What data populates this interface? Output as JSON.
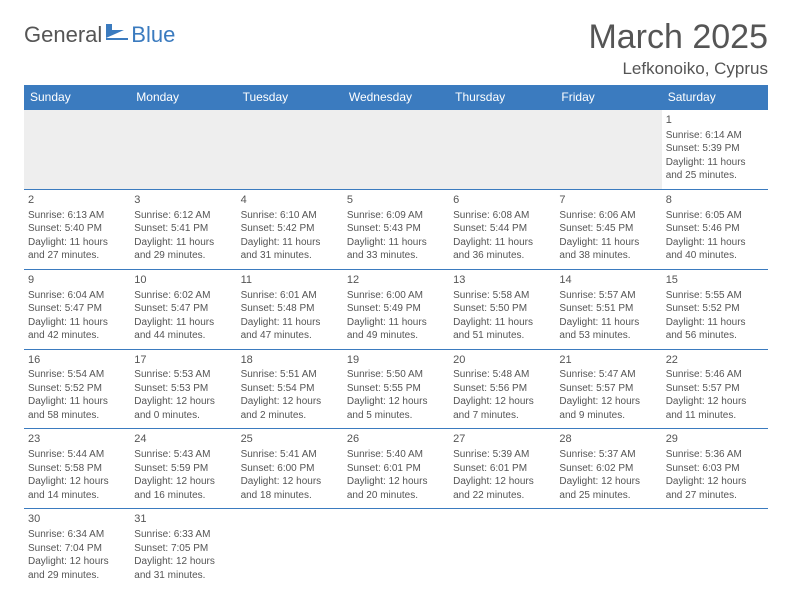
{
  "logo": {
    "text1": "General",
    "text2": "Blue"
  },
  "title": "March 2025",
  "location": "Lefkonoiko, Cyprus",
  "colors": {
    "header_bg": "#3b7bbf",
    "header_text": "#ffffff",
    "body_text": "#555555",
    "border": "#3b7bbf",
    "empty_bg": "#eeeeee"
  },
  "day_headers": [
    "Sunday",
    "Monday",
    "Tuesday",
    "Wednesday",
    "Thursday",
    "Friday",
    "Saturday"
  ],
  "weeks": [
    [
      null,
      null,
      null,
      null,
      null,
      null,
      {
        "n": "1",
        "sr": "Sunrise: 6:14 AM",
        "ss": "Sunset: 5:39 PM",
        "dl": "Daylight: 11 hours and 25 minutes."
      }
    ],
    [
      {
        "n": "2",
        "sr": "Sunrise: 6:13 AM",
        "ss": "Sunset: 5:40 PM",
        "dl": "Daylight: 11 hours and 27 minutes."
      },
      {
        "n": "3",
        "sr": "Sunrise: 6:12 AM",
        "ss": "Sunset: 5:41 PM",
        "dl": "Daylight: 11 hours and 29 minutes."
      },
      {
        "n": "4",
        "sr": "Sunrise: 6:10 AM",
        "ss": "Sunset: 5:42 PM",
        "dl": "Daylight: 11 hours and 31 minutes."
      },
      {
        "n": "5",
        "sr": "Sunrise: 6:09 AM",
        "ss": "Sunset: 5:43 PM",
        "dl": "Daylight: 11 hours and 33 minutes."
      },
      {
        "n": "6",
        "sr": "Sunrise: 6:08 AM",
        "ss": "Sunset: 5:44 PM",
        "dl": "Daylight: 11 hours and 36 minutes."
      },
      {
        "n": "7",
        "sr": "Sunrise: 6:06 AM",
        "ss": "Sunset: 5:45 PM",
        "dl": "Daylight: 11 hours and 38 minutes."
      },
      {
        "n": "8",
        "sr": "Sunrise: 6:05 AM",
        "ss": "Sunset: 5:46 PM",
        "dl": "Daylight: 11 hours and 40 minutes."
      }
    ],
    [
      {
        "n": "9",
        "sr": "Sunrise: 6:04 AM",
        "ss": "Sunset: 5:47 PM",
        "dl": "Daylight: 11 hours and 42 minutes."
      },
      {
        "n": "10",
        "sr": "Sunrise: 6:02 AM",
        "ss": "Sunset: 5:47 PM",
        "dl": "Daylight: 11 hours and 44 minutes."
      },
      {
        "n": "11",
        "sr": "Sunrise: 6:01 AM",
        "ss": "Sunset: 5:48 PM",
        "dl": "Daylight: 11 hours and 47 minutes."
      },
      {
        "n": "12",
        "sr": "Sunrise: 6:00 AM",
        "ss": "Sunset: 5:49 PM",
        "dl": "Daylight: 11 hours and 49 minutes."
      },
      {
        "n": "13",
        "sr": "Sunrise: 5:58 AM",
        "ss": "Sunset: 5:50 PM",
        "dl": "Daylight: 11 hours and 51 minutes."
      },
      {
        "n": "14",
        "sr": "Sunrise: 5:57 AM",
        "ss": "Sunset: 5:51 PM",
        "dl": "Daylight: 11 hours and 53 minutes."
      },
      {
        "n": "15",
        "sr": "Sunrise: 5:55 AM",
        "ss": "Sunset: 5:52 PM",
        "dl": "Daylight: 11 hours and 56 minutes."
      }
    ],
    [
      {
        "n": "16",
        "sr": "Sunrise: 5:54 AM",
        "ss": "Sunset: 5:52 PM",
        "dl": "Daylight: 11 hours and 58 minutes."
      },
      {
        "n": "17",
        "sr": "Sunrise: 5:53 AM",
        "ss": "Sunset: 5:53 PM",
        "dl": "Daylight: 12 hours and 0 minutes."
      },
      {
        "n": "18",
        "sr": "Sunrise: 5:51 AM",
        "ss": "Sunset: 5:54 PM",
        "dl": "Daylight: 12 hours and 2 minutes."
      },
      {
        "n": "19",
        "sr": "Sunrise: 5:50 AM",
        "ss": "Sunset: 5:55 PM",
        "dl": "Daylight: 12 hours and 5 minutes."
      },
      {
        "n": "20",
        "sr": "Sunrise: 5:48 AM",
        "ss": "Sunset: 5:56 PM",
        "dl": "Daylight: 12 hours and 7 minutes."
      },
      {
        "n": "21",
        "sr": "Sunrise: 5:47 AM",
        "ss": "Sunset: 5:57 PM",
        "dl": "Daylight: 12 hours and 9 minutes."
      },
      {
        "n": "22",
        "sr": "Sunrise: 5:46 AM",
        "ss": "Sunset: 5:57 PM",
        "dl": "Daylight: 12 hours and 11 minutes."
      }
    ],
    [
      {
        "n": "23",
        "sr": "Sunrise: 5:44 AM",
        "ss": "Sunset: 5:58 PM",
        "dl": "Daylight: 12 hours and 14 minutes."
      },
      {
        "n": "24",
        "sr": "Sunrise: 5:43 AM",
        "ss": "Sunset: 5:59 PM",
        "dl": "Daylight: 12 hours and 16 minutes."
      },
      {
        "n": "25",
        "sr": "Sunrise: 5:41 AM",
        "ss": "Sunset: 6:00 PM",
        "dl": "Daylight: 12 hours and 18 minutes."
      },
      {
        "n": "26",
        "sr": "Sunrise: 5:40 AM",
        "ss": "Sunset: 6:01 PM",
        "dl": "Daylight: 12 hours and 20 minutes."
      },
      {
        "n": "27",
        "sr": "Sunrise: 5:39 AM",
        "ss": "Sunset: 6:01 PM",
        "dl": "Daylight: 12 hours and 22 minutes."
      },
      {
        "n": "28",
        "sr": "Sunrise: 5:37 AM",
        "ss": "Sunset: 6:02 PM",
        "dl": "Daylight: 12 hours and 25 minutes."
      },
      {
        "n": "29",
        "sr": "Sunrise: 5:36 AM",
        "ss": "Sunset: 6:03 PM",
        "dl": "Daylight: 12 hours and 27 minutes."
      }
    ],
    [
      {
        "n": "30",
        "sr": "Sunrise: 6:34 AM",
        "ss": "Sunset: 7:04 PM",
        "dl": "Daylight: 12 hours and 29 minutes."
      },
      {
        "n": "31",
        "sr": "Sunrise: 6:33 AM",
        "ss": "Sunset: 7:05 PM",
        "dl": "Daylight: 12 hours and 31 minutes."
      },
      null,
      null,
      null,
      null,
      null
    ]
  ]
}
